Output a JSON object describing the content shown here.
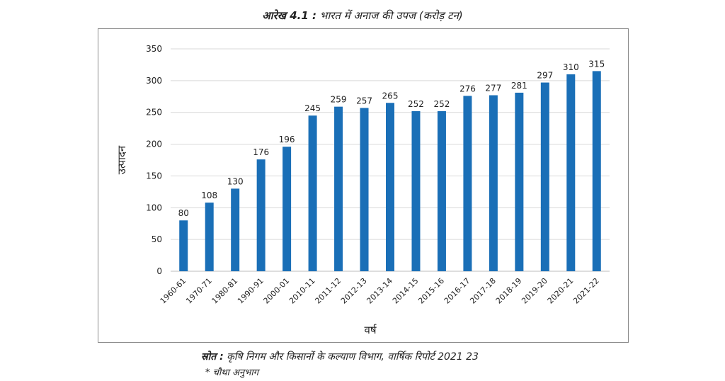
{
  "figure": {
    "number": "आरेख 4.1 :",
    "title": "भारत में अनाज की उपज (करोड़ टन)"
  },
  "source": {
    "label": "स्रोत :",
    "text": "कृषि निगम और किसानों के कल्याण विभाग, वार्षिक रिपोर्ट 2021 23"
  },
  "footnote": "* चौथा अनुभाग",
  "chart_data": {
    "type": "bar",
    "title": "भारत में अनाज की उपज (करोड़ टन)",
    "xlabel": "वर्ष",
    "ylabel": "उत्पादन",
    "ylim": [
      0,
      350
    ],
    "yticks": [
      0,
      50,
      100,
      150,
      200,
      250,
      300,
      350
    ],
    "grid": true,
    "bar_color": "#1a6fb7",
    "categories": [
      "1960-61",
      "1970-71",
      "1980-81",
      "1990-91",
      "2000-01",
      "2010-11",
      "2011-12",
      "2012-13",
      "2013-14",
      "2014-15",
      "2015-16",
      "2016-17",
      "2017-18",
      "2018-19",
      "2019-20",
      "2020-21",
      "2021-22"
    ],
    "values": [
      80,
      108,
      130,
      176,
      196,
      245,
      259,
      257,
      265,
      252,
      252,
      276,
      277,
      281,
      297,
      310,
      315
    ]
  }
}
